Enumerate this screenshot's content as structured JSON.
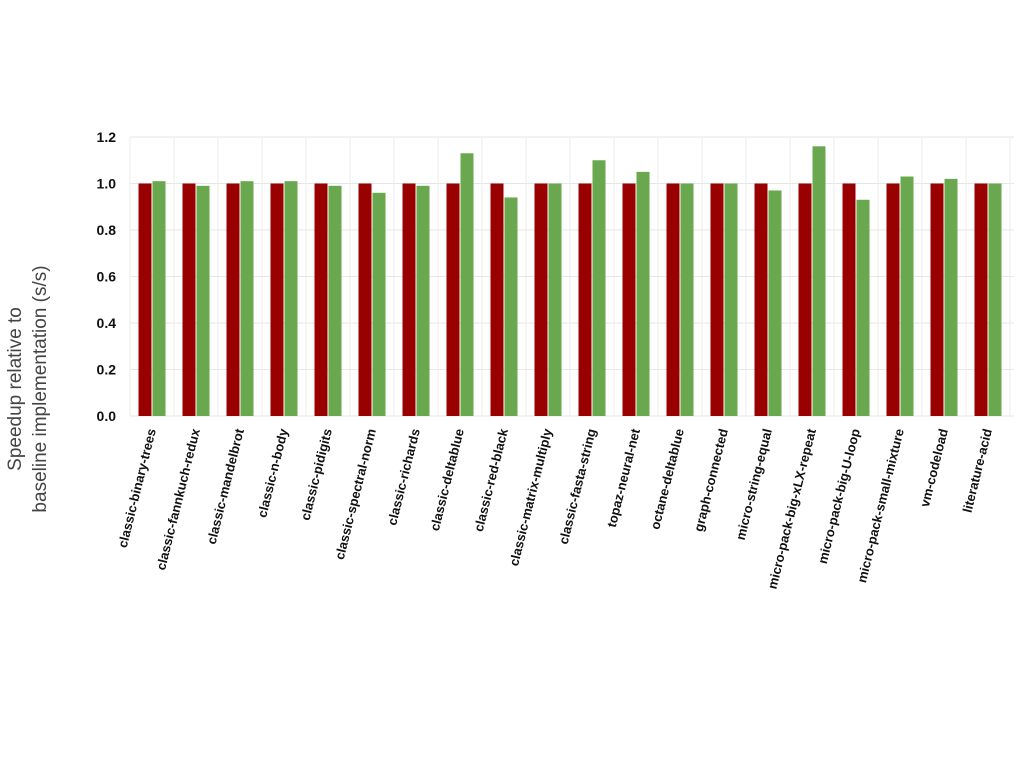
{
  "chart_data": {
    "type": "bar",
    "ylabel": [
      "Speedup relative to",
      "baseline implementation (s/s)"
    ],
    "ylim": [
      0,
      1.2
    ],
    "yticks": [
      "0.0",
      "0.2",
      "0.4",
      "0.6",
      "0.8",
      "1.0",
      "1.2"
    ],
    "grid": true,
    "categories": [
      "classic-binary-trees",
      "classic-fannkuch-redux",
      "classic-mandelbrot",
      "classic-n-body",
      "classic-pidigits",
      "classic-spectral-norm",
      "classic-richards",
      "classic-deltablue",
      "classic-red-black",
      "classic-matrix-multiply",
      "classic-fasta-string",
      "topaz-neural-net",
      "octane-deltablue",
      "graph-connected",
      "micro-string-equal",
      "micro-pack-big-xLX-repeat",
      "micro-pack-big-U-loop",
      "micro-pack-small-mixture",
      "vm-codeload",
      "literature-acid"
    ],
    "series": [
      {
        "color": "#990000",
        "values": [
          1.0,
          1.0,
          1.0,
          1.0,
          1.0,
          1.0,
          1.0,
          1.0,
          1.0,
          1.0,
          1.0,
          1.0,
          1.0,
          1.0,
          1.0,
          1.0,
          1.0,
          1.0,
          1.0,
          1.0
        ]
      },
      {
        "color": "#6aa84f",
        "values": [
          1.01,
          0.99,
          1.01,
          1.01,
          0.99,
          0.96,
          0.99,
          1.13,
          0.94,
          1.0,
          1.1,
          1.05,
          1.0,
          1.0,
          0.97,
          1.16,
          0.93,
          1.03,
          1.02,
          1.0
        ]
      }
    ]
  }
}
